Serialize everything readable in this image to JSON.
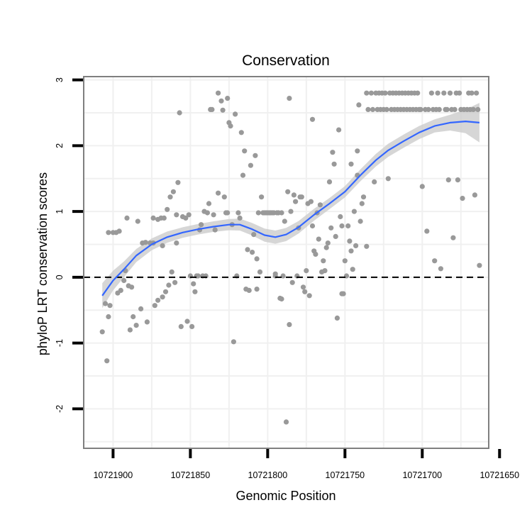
{
  "chart_data": {
    "type": "scatter",
    "title": "Conservation",
    "xlabel": "Genomic Position",
    "ylabel": "phyloP LRT conservation scores",
    "x_reversed": true,
    "xlim": [
      10721657,
      10721919
    ],
    "ylim": [
      -2.6,
      3.05
    ],
    "x_ticks": [
      10721900,
      10721850,
      10721800,
      10721750,
      10721700,
      10721650
    ],
    "x_tick_labels": [
      "10721900",
      "10721850",
      "10721800",
      "10721750",
      "10721700",
      "10721650"
    ],
    "y_ticks": [
      -2,
      -1,
      0,
      1,
      2,
      3
    ],
    "y_tick_labels": [
      "-2",
      "-1",
      "0",
      "1",
      "2",
      "3"
    ],
    "grid": true,
    "reference_line": {
      "y": 0,
      "style": "dashed"
    },
    "colors": {
      "points": "#999999",
      "smooth_line": "#3366FF",
      "ribbon": "#cccccc",
      "grid": "#f0f0f0",
      "panel_border": "#7f7f7f"
    },
    "points": [
      [
        10721907,
        -0.83
      ],
      [
        10721905,
        -0.4
      ],
      [
        10721904,
        -1.27
      ],
      [
        10721903,
        -0.6
      ],
      [
        10721902,
        -0.43
      ],
      [
        10721903,
        0.68
      ],
      [
        10721900,
        0.68
      ],
      [
        10721898,
        0.68
      ],
      [
        10721896,
        0.7
      ],
      [
        10721897,
        -0.24
      ],
      [
        10721895,
        -0.2
      ],
      [
        10721893,
        -0.05
      ],
      [
        10721892,
        0.1
      ],
      [
        10721890,
        -0.13
      ],
      [
        10721891,
        0.9
      ],
      [
        10721888,
        -0.15
      ],
      [
        10721889,
        -0.8
      ],
      [
        10721887,
        -0.6
      ],
      [
        10721885,
        -0.73
      ],
      [
        10721884,
        0.85
      ],
      [
        10721882,
        -0.48
      ],
      [
        10721881,
        0.52
      ],
      [
        10721879,
        0.53
      ],
      [
        10721878,
        -0.68
      ],
      [
        10721876,
        0.52
      ],
      [
        10721874,
        0.52
      ],
      [
        10721874,
        0.9
      ],
      [
        10721873,
        -0.43
      ],
      [
        10721871,
        -0.35
      ],
      [
        10721871,
        0.88
      ],
      [
        10721869,
        0.9
      ],
      [
        10721868,
        0.48
      ],
      [
        10721868,
        -0.3
      ],
      [
        10721867,
        0.9
      ],
      [
        10721866,
        -0.22
      ],
      [
        10721865,
        1.03
      ],
      [
        10721864,
        -0.12
      ],
      [
        10721863,
        1.22
      ],
      [
        10721862,
        0.08
      ],
      [
        10721861,
        1.3
      ],
      [
        10721860,
        -0.08
      ],
      [
        10721859,
        0.52
      ],
      [
        10721859,
        0.95
      ],
      [
        10721858,
        1.44
      ],
      [
        10721857,
        2.5
      ],
      [
        10721856,
        -0.75
      ],
      [
        10721855,
        0.92
      ],
      [
        10721853,
        0.9
      ],
      [
        10721852,
        -0.67
      ],
      [
        10721851,
        0.95
      ],
      [
        10721850,
        0.02
      ],
      [
        10721849,
        -0.75
      ],
      [
        10721848,
        -0.1
      ],
      [
        10721847,
        -0.22
      ],
      [
        10721846,
        0.02
      ],
      [
        10721845,
        0.02
      ],
      [
        10721844,
        0.72
      ],
      [
        10721843,
        0.8
      ],
      [
        10721842,
        0.02
      ],
      [
        10721841,
        1.0
      ],
      [
        10721840,
        0.02
      ],
      [
        10721839,
        0.98
      ],
      [
        10721838,
        1.12
      ],
      [
        10721837,
        2.55
      ],
      [
        10721836,
        2.55
      ],
      [
        10721835,
        0.95
      ],
      [
        10721834,
        0.72
      ],
      [
        10721832,
        2.8
      ],
      [
        10721832,
        1.28
      ],
      [
        10721830,
        2.68
      ],
      [
        10721829,
        2.54
      ],
      [
        10721828,
        1.22
      ],
      [
        10721827,
        0.98
      ],
      [
        10721826,
        2.72
      ],
      [
        10721826,
        0.98
      ],
      [
        10721825,
        2.35
      ],
      [
        10721824,
        2.3
      ],
      [
        10721823,
        0.8
      ],
      [
        10721822,
        -0.98
      ],
      [
        10721821,
        2.48
      ],
      [
        10721820,
        0.02
      ],
      [
        10721819,
        0.98
      ],
      [
        10721818,
        0.9
      ],
      [
        10721817,
        2.2
      ],
      [
        10721816,
        1.55
      ],
      [
        10721815,
        1.92
      ],
      [
        10721814,
        -0.18
      ],
      [
        10721813,
        0.42
      ],
      [
        10721812,
        -0.2
      ],
      [
        10721811,
        1.7
      ],
      [
        10721810,
        0.38
      ],
      [
        10721809,
        0.65
      ],
      [
        10721808,
        1.85
      ],
      [
        10721807,
        0.28
      ],
      [
        10721807,
        -0.18
      ],
      [
        10721806,
        0.98
      ],
      [
        10721805,
        0.08
      ],
      [
        10721804,
        1.22
      ],
      [
        10721803,
        0.98
      ],
      [
        10721802,
        0.98
      ],
      [
        10721801,
        0.98
      ],
      [
        10721800,
        0.98
      ],
      [
        10721799,
        0.98
      ],
      [
        10721798,
        0.98
      ],
      [
        10721797,
        0.98
      ],
      [
        10721796,
        0.98
      ],
      [
        10721795,
        0.05
      ],
      [
        10721795,
        0.02
      ],
      [
        10721794,
        0.98
      ],
      [
        10721793,
        0.98
      ],
      [
        10721792,
        -0.32
      ],
      [
        10721791,
        0.98
      ],
      [
        10721791,
        -0.33
      ],
      [
        10721790,
        0.02
      ],
      [
        10721789,
        0.85
      ],
      [
        10721788,
        -2.2
      ],
      [
        10721787,
        1.3
      ],
      [
        10721786,
        -0.72
      ],
      [
        10721786,
        2.72
      ],
      [
        10721785,
        1.0
      ],
      [
        10721784,
        -0.08
      ],
      [
        10721783,
        1.25
      ],
      [
        10721782,
        1.15
      ],
      [
        10721781,
        0.02
      ],
      [
        10721780,
        0.75
      ],
      [
        10721779,
        1.22
      ],
      [
        10721778,
        1.22
      ],
      [
        10721777,
        -0.15
      ],
      [
        10721776,
        -0.22
      ],
      [
        10721775,
        0.1
      ],
      [
        10721774,
        1.12
      ],
      [
        10721773,
        -0.28
      ],
      [
        10721772,
        1.15
      ],
      [
        10721771,
        0.78
      ],
      [
        10721771,
        2.4
      ],
      [
        10721770,
        0.4
      ],
      [
        10721769,
        0.35
      ],
      [
        10721768,
        0.98
      ],
      [
        10721767,
        0.58
      ],
      [
        10721766,
        1.1
      ],
      [
        10721765,
        0.08
      ],
      [
        10721764,
        0.25
      ],
      [
        10721763,
        0.1
      ],
      [
        10721762,
        0.45
      ],
      [
        10721761,
        0.52
      ],
      [
        10721760,
        1.45
      ],
      [
        10721759,
        0.75
      ],
      [
        10721758,
        1.9
      ],
      [
        10721757,
        1.72
      ],
      [
        10721756,
        0.62
      ],
      [
        10721755,
        -0.62
      ],
      [
        10721754,
        2.24
      ],
      [
        10721753,
        0.92
      ],
      [
        10721752,
        -0.25
      ],
      [
        10721752,
        0.78
      ],
      [
        10721751,
        -0.25
      ],
      [
        10721750,
        0.25
      ],
      [
        10721749,
        0.02
      ],
      [
        10721748,
        0.78
      ],
      [
        10721747,
        0.55
      ],
      [
        10721746,
        0.4
      ],
      [
        10721746,
        1.72
      ],
      [
        10721745,
        0.12
      ],
      [
        10721744,
        1.0
      ],
      [
        10721743,
        0.48
      ],
      [
        10721742,
        1.92
      ],
      [
        10721742,
        1.55
      ],
      [
        10721741,
        2.62
      ],
      [
        10721740,
        0.85
      ],
      [
        10721739,
        1.12
      ],
      [
        10721738,
        1.22
      ],
      [
        10721736,
        0.47
      ],
      [
        10721736,
        2.8
      ],
      [
        10721735,
        2.55
      ],
      [
        10721733,
        2.8
      ],
      [
        10721732,
        2.55
      ],
      [
        10721731,
        1.45
      ],
      [
        10721730,
        2.8
      ],
      [
        10721729,
        2.55
      ],
      [
        10721728,
        2.8
      ],
      [
        10721727,
        2.55
      ],
      [
        10721726,
        2.8
      ],
      [
        10721725,
        2.55
      ],
      [
        10721724,
        2.8
      ],
      [
        10721723,
        2.55
      ],
      [
        10721722,
        1.5
      ],
      [
        10721721,
        2.8
      ],
      [
        10721720,
        2.55
      ],
      [
        10721719,
        2.8
      ],
      [
        10721718,
        2.55
      ],
      [
        10721717,
        2.8
      ],
      [
        10721716,
        2.55
      ],
      [
        10721715,
        2.8
      ],
      [
        10721714,
        2.55
      ],
      [
        10721713,
        2.8
      ],
      [
        10721712,
        2.55
      ],
      [
        10721711,
        2.8
      ],
      [
        10721710,
        2.55
      ],
      [
        10721709,
        2.8
      ],
      [
        10721708,
        2.55
      ],
      [
        10721707,
        2.8
      ],
      [
        10721706,
        2.55
      ],
      [
        10721705,
        2.8
      ],
      [
        10721704,
        2.55
      ],
      [
        10721703,
        2.8
      ],
      [
        10721702,
        2.55
      ],
      [
        10721701,
        2.55
      ],
      [
        10721700,
        1.38
      ],
      [
        10721698,
        2.55
      ],
      [
        10721697,
        0.7
      ],
      [
        10721696,
        2.55
      ],
      [
        10721694,
        2.8
      ],
      [
        10721693,
        2.55
      ],
      [
        10721692,
        0.25
      ],
      [
        10721691,
        2.55
      ],
      [
        10721690,
        2.8
      ],
      [
        10721689,
        2.55
      ],
      [
        10721688,
        0.13
      ],
      [
        10721686,
        2.8
      ],
      [
        10721685,
        2.55
      ],
      [
        10721684,
        2.55
      ],
      [
        10721683,
        1.48
      ],
      [
        10721682,
        2.8
      ],
      [
        10721681,
        2.55
      ],
      [
        10721680,
        0.6
      ],
      [
        10721679,
        2.55
      ],
      [
        10721678,
        2.8
      ],
      [
        10721677,
        1.48
      ],
      [
        10721676,
        2.8
      ],
      [
        10721675,
        2.55
      ],
      [
        10721674,
        1.2
      ],
      [
        10721673,
        2.55
      ],
      [
        10721671,
        2.55
      ],
      [
        10721670,
        2.8
      ],
      [
        10721669,
        2.55
      ],
      [
        10721668,
        2.8
      ],
      [
        10721667,
        2.55
      ],
      [
        10721666,
        1.25
      ],
      [
        10721665,
        2.8
      ],
      [
        10721664,
        2.55
      ],
      [
        10721663,
        0.18
      ]
    ],
    "smooth": [
      [
        10721907,
        -0.28
      ],
      [
        10721900,
        -0.05
      ],
      [
        10721893,
        0.12
      ],
      [
        10721885,
        0.33
      ],
      [
        10721875,
        0.5
      ],
      [
        10721865,
        0.61
      ],
      [
        10721855,
        0.68
      ],
      [
        10721845,
        0.73
      ],
      [
        10721835,
        0.77
      ],
      [
        10721825,
        0.8
      ],
      [
        10721818,
        0.8
      ],
      [
        10721810,
        0.73
      ],
      [
        10721802,
        0.64
      ],
      [
        10721795,
        0.61
      ],
      [
        10721788,
        0.65
      ],
      [
        10721780,
        0.76
      ],
      [
        10721770,
        0.95
      ],
      [
        10721760,
        1.12
      ],
      [
        10721750,
        1.3
      ],
      [
        10721740,
        1.55
      ],
      [
        10721730,
        1.78
      ],
      [
        10721722,
        1.93
      ],
      [
        10721712,
        2.07
      ],
      [
        10721702,
        2.2
      ],
      [
        10721692,
        2.3
      ],
      [
        10721682,
        2.35
      ],
      [
        10721672,
        2.37
      ],
      [
        10721663,
        2.35
      ]
    ],
    "ribbon_halfwidth": [
      0.19,
      0.15,
      0.12,
      0.1,
      0.09,
      0.085,
      0.08,
      0.08,
      0.08,
      0.085,
      0.09,
      0.095,
      0.1,
      0.1,
      0.1,
      0.095,
      0.09,
      0.085,
      0.085,
      0.09,
      0.095,
      0.1,
      0.1,
      0.1,
      0.1,
      0.12,
      0.18,
      0.3
    ]
  }
}
